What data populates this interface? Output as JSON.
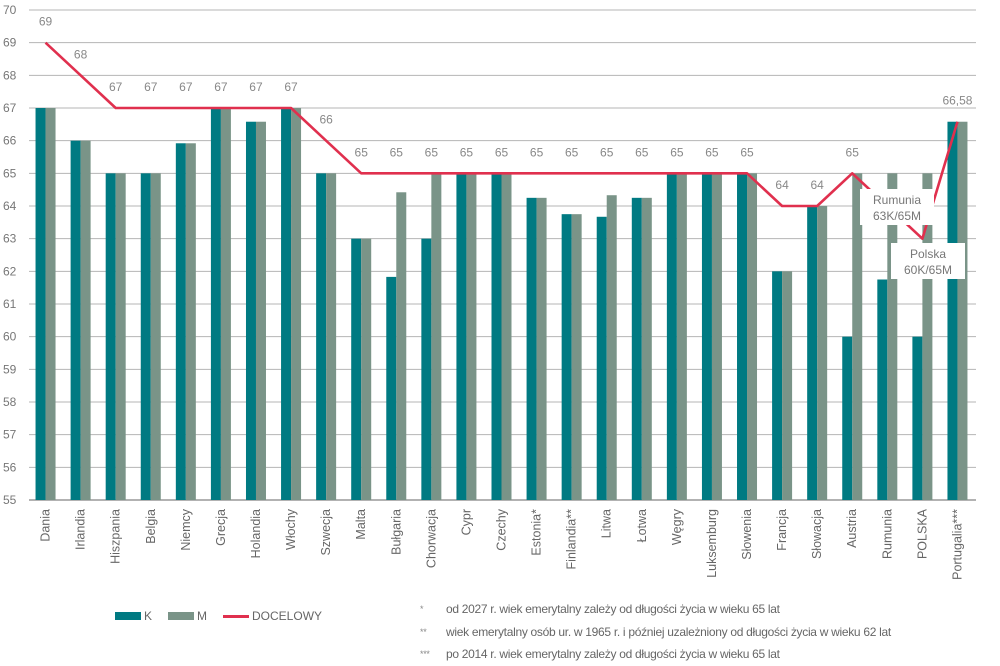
{
  "chart_data": {
    "type": "bar",
    "title": "",
    "xlabel": "",
    "ylabel": "",
    "ylim": [
      55,
      70
    ],
    "yticks": [
      55,
      56,
      57,
      58,
      59,
      60,
      61,
      62,
      63,
      64,
      65,
      66,
      67,
      68,
      69,
      70
    ],
    "grid": true,
    "legend_position": "bottom-left",
    "categories": [
      "Dania",
      "Irlandia",
      "Hiszpania",
      "Belgia",
      "Niemcy",
      "Grecja",
      "Holandia",
      "Włochy",
      "Szwecja",
      "Malta",
      "Bułgaria",
      "Chorwacja",
      "Cypr",
      "Czechy",
      "Estonia*",
      "Finlandia**",
      "Litwa",
      "Łotwa",
      "Węgry",
      "Luksemburg",
      "Słowenia",
      "Francja",
      "Słowacja",
      "Austria",
      "Rumunia",
      "POLSKA",
      "Portugalia***"
    ],
    "series": [
      {
        "name": "K",
        "type": "bar",
        "color": "#007a82",
        "values": [
          67,
          66,
          65,
          65,
          65.92,
          67,
          66.58,
          67,
          65,
          63,
          61.83,
          63,
          65,
          65,
          64.25,
          63.75,
          63.67,
          64.25,
          65,
          65,
          65,
          62,
          64,
          60,
          61.75,
          60,
          66.58
        ]
      },
      {
        "name": "M",
        "type": "bar",
        "color": "#7a9488",
        "values": [
          67,
          66,
          65,
          65,
          65.92,
          67,
          66.58,
          67,
          65,
          63,
          64.42,
          65,
          65,
          65,
          64.25,
          63.75,
          64.33,
          64.25,
          65,
          65,
          65,
          62,
          64,
          65,
          65,
          65,
          66.58
        ]
      },
      {
        "name": "DOCELOWY",
        "type": "line",
        "color": "#e0304e",
        "values": [
          69,
          68,
          67,
          67,
          67,
          67,
          67,
          67,
          66,
          65,
          65,
          65,
          65,
          65,
          65,
          65,
          65,
          65,
          65,
          65,
          65,
          64,
          64,
          65,
          64,
          63,
          66.58
        ]
      }
    ],
    "line_labels": [
      "69",
      "68",
      "67",
      "67",
      "67",
      "67",
      "67",
      "67",
      "66",
      "65",
      "65",
      "65",
      "65",
      "65",
      "65",
      "65",
      "65",
      "65",
      "65",
      "65",
      "65",
      "64",
      "64",
      "65",
      null,
      null,
      "66,58"
    ],
    "annotations": [
      {
        "category": "Rumunia",
        "lines": [
          "Rumunia",
          "63K/65M"
        ]
      },
      {
        "category": "POLSKA",
        "lines": [
          "Polska",
          "60K/65M"
        ]
      }
    ]
  },
  "legend": {
    "k": "K",
    "m": "M",
    "target": "DOCELOWY"
  },
  "footnotes": [
    {
      "mark": "*",
      "text": "od 2027 r. wiek emerytalny zależy od długości życia w wieku 65 lat"
    },
    {
      "mark": "**",
      "text": "wiek emerytalny osób ur. w 1965 r. i później uzależniony od długości życia w wieku 62 lat"
    },
    {
      "mark": "***",
      "text": "po 2014 r. wiek emerytalny zależy od długości życia w wieku 65 lat"
    }
  ]
}
